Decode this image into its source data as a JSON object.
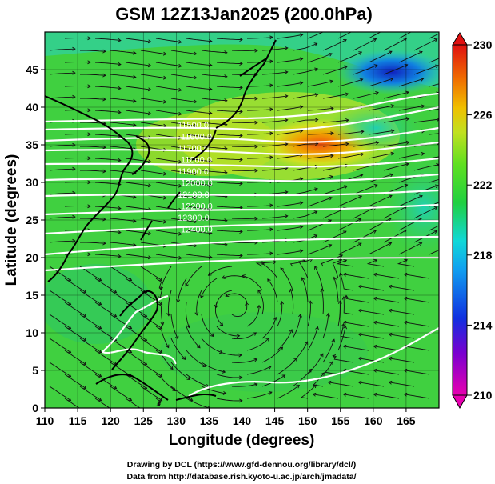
{
  "title": "GSM 12Z13Jan2025 (200.0hPa)",
  "x_axis": {
    "label": "Longitude (degrees)",
    "range": [
      110,
      170
    ],
    "ticks": [
      "110",
      "115",
      "120",
      "125",
      "130",
      "135",
      "140",
      "145",
      "150",
      "155",
      "160",
      "165"
    ]
  },
  "y_axis": {
    "label": "Latitude  (degrees)",
    "range": [
      0,
      50
    ],
    "ticks": [
      "0",
      "5",
      "10",
      "15",
      "20",
      "25",
      "30",
      "35",
      "40",
      "45"
    ]
  },
  "colorbar": {
    "range": [
      210,
      230
    ],
    "ticks": [
      "210",
      "214",
      "218",
      "222",
      "226",
      "230"
    ],
    "colors": [
      "#e800b0",
      "#7a00d0",
      "#1030e0",
      "#10a0f0",
      "#10d8d8",
      "#20d040",
      "#60e020",
      "#c0e020",
      "#f0c000",
      "#f07000",
      "#e01010"
    ]
  },
  "contour_labels": [
    "11500.0",
    "11600.0",
    "11700.0",
    "11800.0",
    "11900.0",
    "12000.0",
    "12100.0",
    "12200.0",
    "12300.0",
    "12400.0"
  ],
  "credits": {
    "line1": "Drawing by DCL (https://www.gfd-dennou.org/library/dcl/)",
    "line2": "Data from http://database.rish.kyoto-u.ac.jp/arch/jmadata/"
  }
}
